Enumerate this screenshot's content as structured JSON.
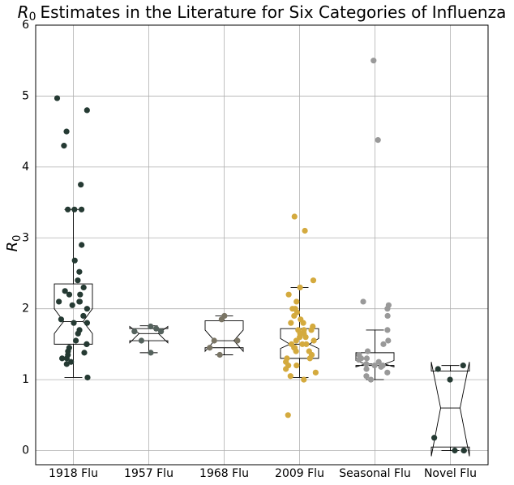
{
  "chart_data": {
    "type": "box",
    "title": {
      "symbol": "R",
      "subscript": "0",
      "text": "Estimates in the Literature for Six Categories of Influenza"
    },
    "y_label": {
      "symbol": "R",
      "subscript": "0"
    },
    "categories": [
      "1918 Flu",
      "1957 Flu",
      "1968 Flu",
      "2009 Flu",
      "Seasonal Flu",
      "Novel Flu"
    ],
    "ylim": [
      -0.2,
      6
    ],
    "yticks": [
      0,
      1,
      2,
      3,
      4,
      5,
      6
    ],
    "grid": true,
    "series": [
      {
        "name": "1918 Flu",
        "color": "#253a33",
        "whisker_low": 1.03,
        "q1": 1.5,
        "notch_low": 1.65,
        "median": 1.82,
        "notch_high": 2.0,
        "q3": 2.35,
        "whisker_high": 3.4,
        "values": [
          4.97,
          4.8,
          4.5,
          4.3,
          3.75,
          3.4,
          3.4,
          3.4,
          2.9,
          2.68,
          2.52,
          2.4,
          2.3,
          2.25,
          2.2,
          2.2,
          2.1,
          2.1,
          2.1,
          2.05,
          2.0,
          1.9,
          1.85,
          1.8,
          1.8,
          1.7,
          1.65,
          1.55,
          1.5,
          1.5,
          1.45,
          1.4,
          1.38,
          1.35,
          1.3,
          1.3,
          1.25,
          1.22,
          1.03
        ]
      },
      {
        "name": "1957 Flu",
        "color": "#55625d",
        "whisker_low": 1.38,
        "q1": 1.55,
        "notch_low": 1.52,
        "median": 1.65,
        "notch_high": 1.75,
        "q3": 1.72,
        "whisker_high": 1.76,
        "values": [
          1.75,
          1.72,
          1.68,
          1.68,
          1.55,
          1.38
        ]
      },
      {
        "name": "1968 Flu",
        "color": "#7a7565",
        "whisker_low": 1.35,
        "q1": 1.45,
        "notch_low": 1.4,
        "median": 1.55,
        "notch_high": 1.7,
        "q3": 1.83,
        "whisker_high": 1.9,
        "values": [
          1.9,
          1.85,
          1.55,
          1.55,
          1.45,
          1.35
        ]
      },
      {
        "name": "2009 Flu",
        "color": "#d4aa3e",
        "whisker_low": 1.03,
        "q1": 1.3,
        "notch_low": 1.44,
        "median": 1.5,
        "notch_high": 1.58,
        "q3": 1.72,
        "whisker_high": 2.3,
        "values": [
          3.3,
          3.1,
          2.4,
          2.3,
          2.2,
          2.1,
          2.0,
          2.0,
          1.95,
          1.9,
          1.85,
          1.8,
          1.8,
          1.75,
          1.7,
          1.7,
          1.7,
          1.65,
          1.65,
          1.6,
          1.6,
          1.55,
          1.55,
          1.5,
          1.5,
          1.5,
          1.45,
          1.45,
          1.4,
          1.4,
          1.35,
          1.3,
          1.3,
          1.25,
          1.2,
          1.2,
          1.15,
          1.1,
          1.05,
          1.0,
          0.5
        ]
      },
      {
        "name": "Seasonal Flu",
        "color": "#999999",
        "whisker_low": 1.0,
        "q1": 1.2,
        "notch_low": 1.18,
        "median": 1.22,
        "notch_high": 1.27,
        "q3": 1.38,
        "whisker_high": 1.7,
        "values": [
          5.5,
          4.38,
          2.1,
          2.05,
          2.0,
          1.9,
          1.7,
          1.55,
          1.5,
          1.4,
          1.35,
          1.3,
          1.3,
          1.28,
          1.25,
          1.22,
          1.2,
          1.2,
          1.18,
          1.15,
          1.1,
          1.05,
          1.0
        ]
      },
      {
        "name": "Novel Flu",
        "color": "#253a33",
        "whisker_low": 0,
        "q1": 0.05,
        "notch_low": -0.08,
        "median": 0.6,
        "notch_high": 1.25,
        "q3": 1.12,
        "whisker_high": 1.2,
        "values": [
          1.2,
          1.15,
          1.0,
          0.18,
          0,
          0,
          0
        ]
      }
    ]
  }
}
